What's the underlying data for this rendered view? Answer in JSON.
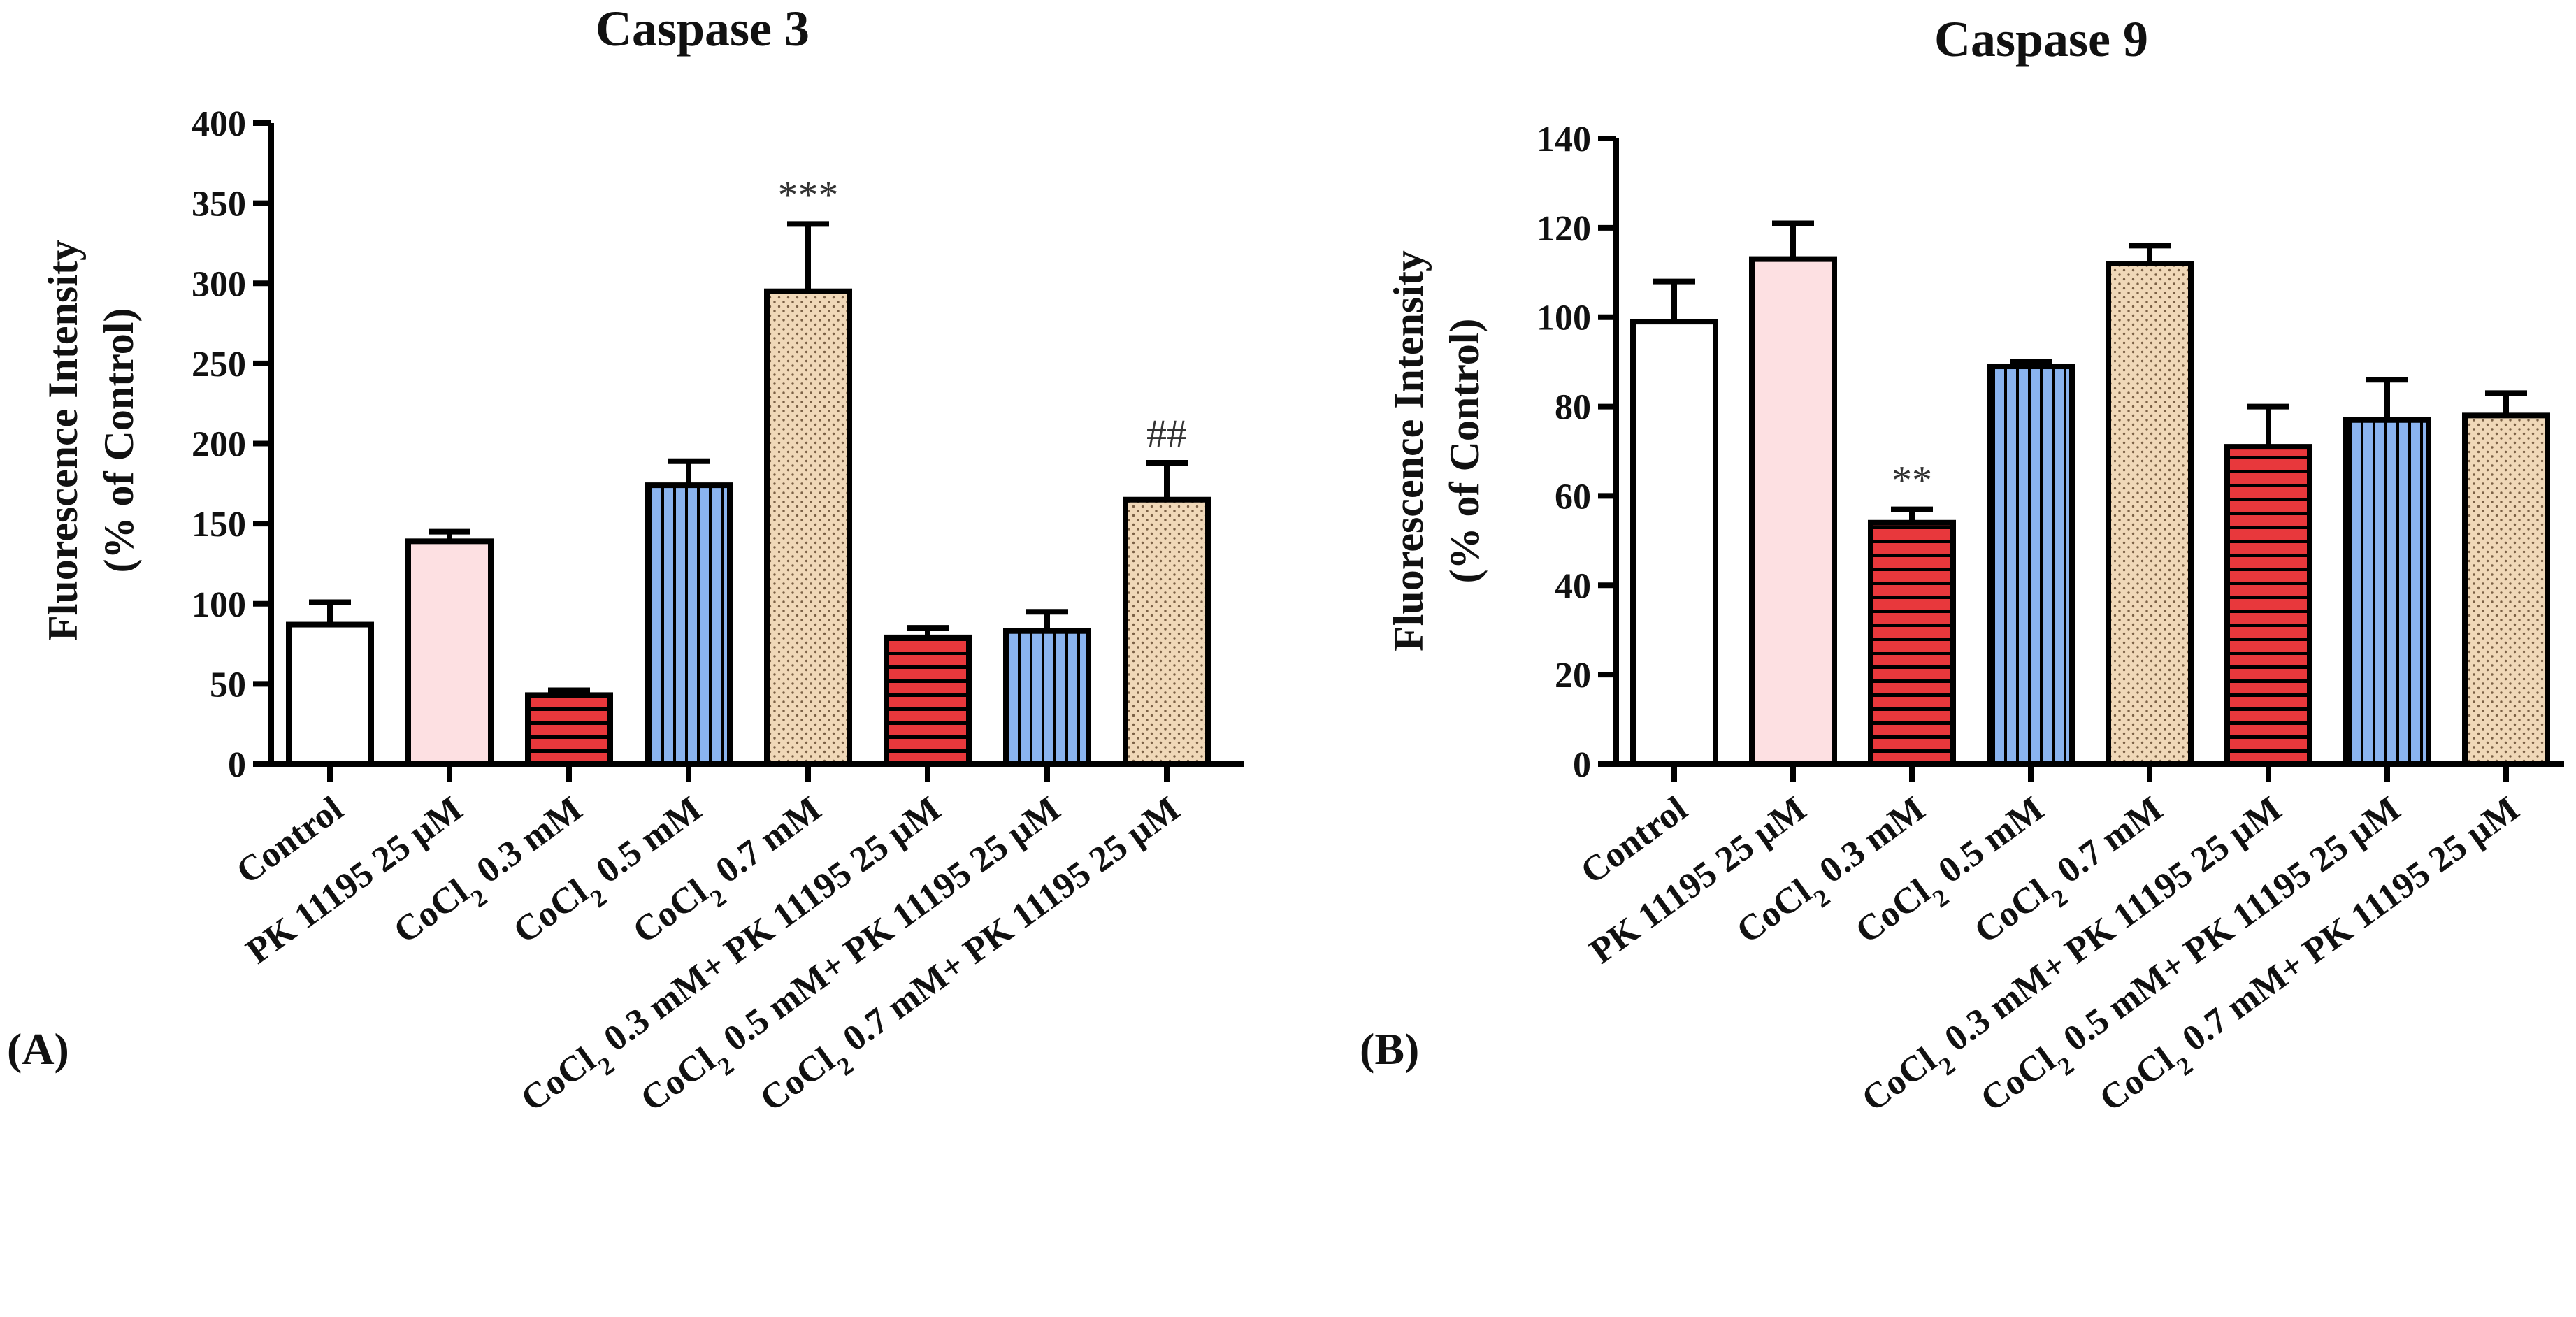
{
  "chart_data": [
    {
      "type": "bar",
      "panel_label": "(A)",
      "title": "Caspase 3",
      "ylabel_line1": "Fluorescence Intensity",
      "ylabel_line2": "(% of Control)",
      "xlabel": "",
      "ylim": [
        0,
        400
      ],
      "yticks": [
        0,
        50,
        100,
        150,
        200,
        250,
        300,
        350,
        400
      ],
      "categories": [
        "Control",
        "PK 11195 25 µM",
        "CoCl2 0.3 mM",
        "CoCl2 0.5 mM",
        "CoCl2 0.7 mM",
        "CoCl2 0.3 mM+ PK 11195 25 µM",
        "CoCl2 0.5 mM+ PK 11195 25 µM",
        "CoCl2 0.7 mM+ PK 11195 25 µM"
      ],
      "values": [
        87,
        139,
        43,
        174,
        295,
        79,
        83,
        165
      ],
      "errors": [
        14,
        6,
        3,
        15,
        42,
        6,
        12,
        23
      ],
      "annotations": [
        "",
        "",
        "",
        "",
        "***",
        "",
        "",
        "##"
      ],
      "fills": [
        "white",
        "pink",
        "red-hstripe",
        "blue-vstripe",
        "tan-dots",
        "red-hstripe",
        "blue-vstripe",
        "tan-dots"
      ],
      "grid": false
    },
    {
      "type": "bar",
      "panel_label": "(B)",
      "title": "Caspase 9",
      "ylabel_line1": "Fluorescence Intensity",
      "ylabel_line2": "(% of Control)",
      "xlabel": "",
      "ylim": [
        0,
        140
      ],
      "yticks": [
        0,
        20,
        40,
        60,
        80,
        100,
        120,
        140
      ],
      "categories": [
        "Control",
        "PK 11195 25 µM",
        "CoCl2 0.3 mM",
        "CoCl2 0.5 mM",
        "CoCl2 0.7 mM",
        "CoCl2 0.3 mM+ PK 11195 25 µM",
        "CoCl2 0.5 mM+ PK 11195 25 µM",
        "CoCl2 0.7 mM+ PK 11195 25 µM"
      ],
      "values": [
        99,
        113,
        54,
        89,
        112,
        71,
        77,
        78
      ],
      "errors": [
        9,
        8,
        3,
        1,
        4,
        9,
        9,
        5
      ],
      "annotations": [
        "",
        "",
        "**",
        "",
        "",
        "",
        "",
        ""
      ],
      "fills": [
        "white",
        "pink",
        "red-hstripe",
        "blue-vstripe",
        "tan-dots",
        "red-hstripe",
        "blue-vstripe",
        "tan-dots"
      ],
      "grid": false
    }
  ],
  "colors": {
    "pink": "#fde0e2",
    "red": "#e8383c",
    "blue": "#8ab4f0",
    "tan": "#f0d8b8",
    "dots": "#7a6045",
    "axis": "#000000"
  }
}
